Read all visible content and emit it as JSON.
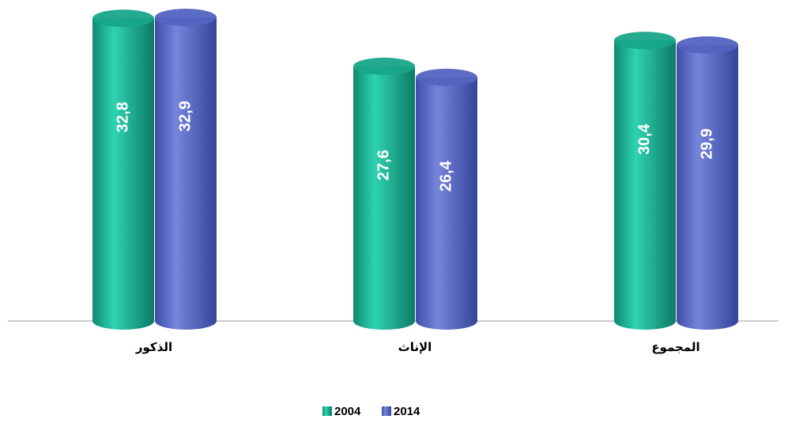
{
  "chart_data": {
    "type": "bar",
    "categories": [
      "الذكور",
      "الإناث",
      "المجموع"
    ],
    "series": [
      {
        "name": "2004",
        "color": "#17a589",
        "values": [
          32.8,
          27.6,
          30.4
        ],
        "value_labels": [
          "32,8",
          "27,6",
          "30,4"
        ]
      },
      {
        "name": "2014",
        "color": "#5363c0",
        "values": [
          32.9,
          26.4,
          29.9
        ],
        "value_labels": [
          "32,9",
          "26,4",
          "29,9"
        ]
      }
    ]
  }
}
